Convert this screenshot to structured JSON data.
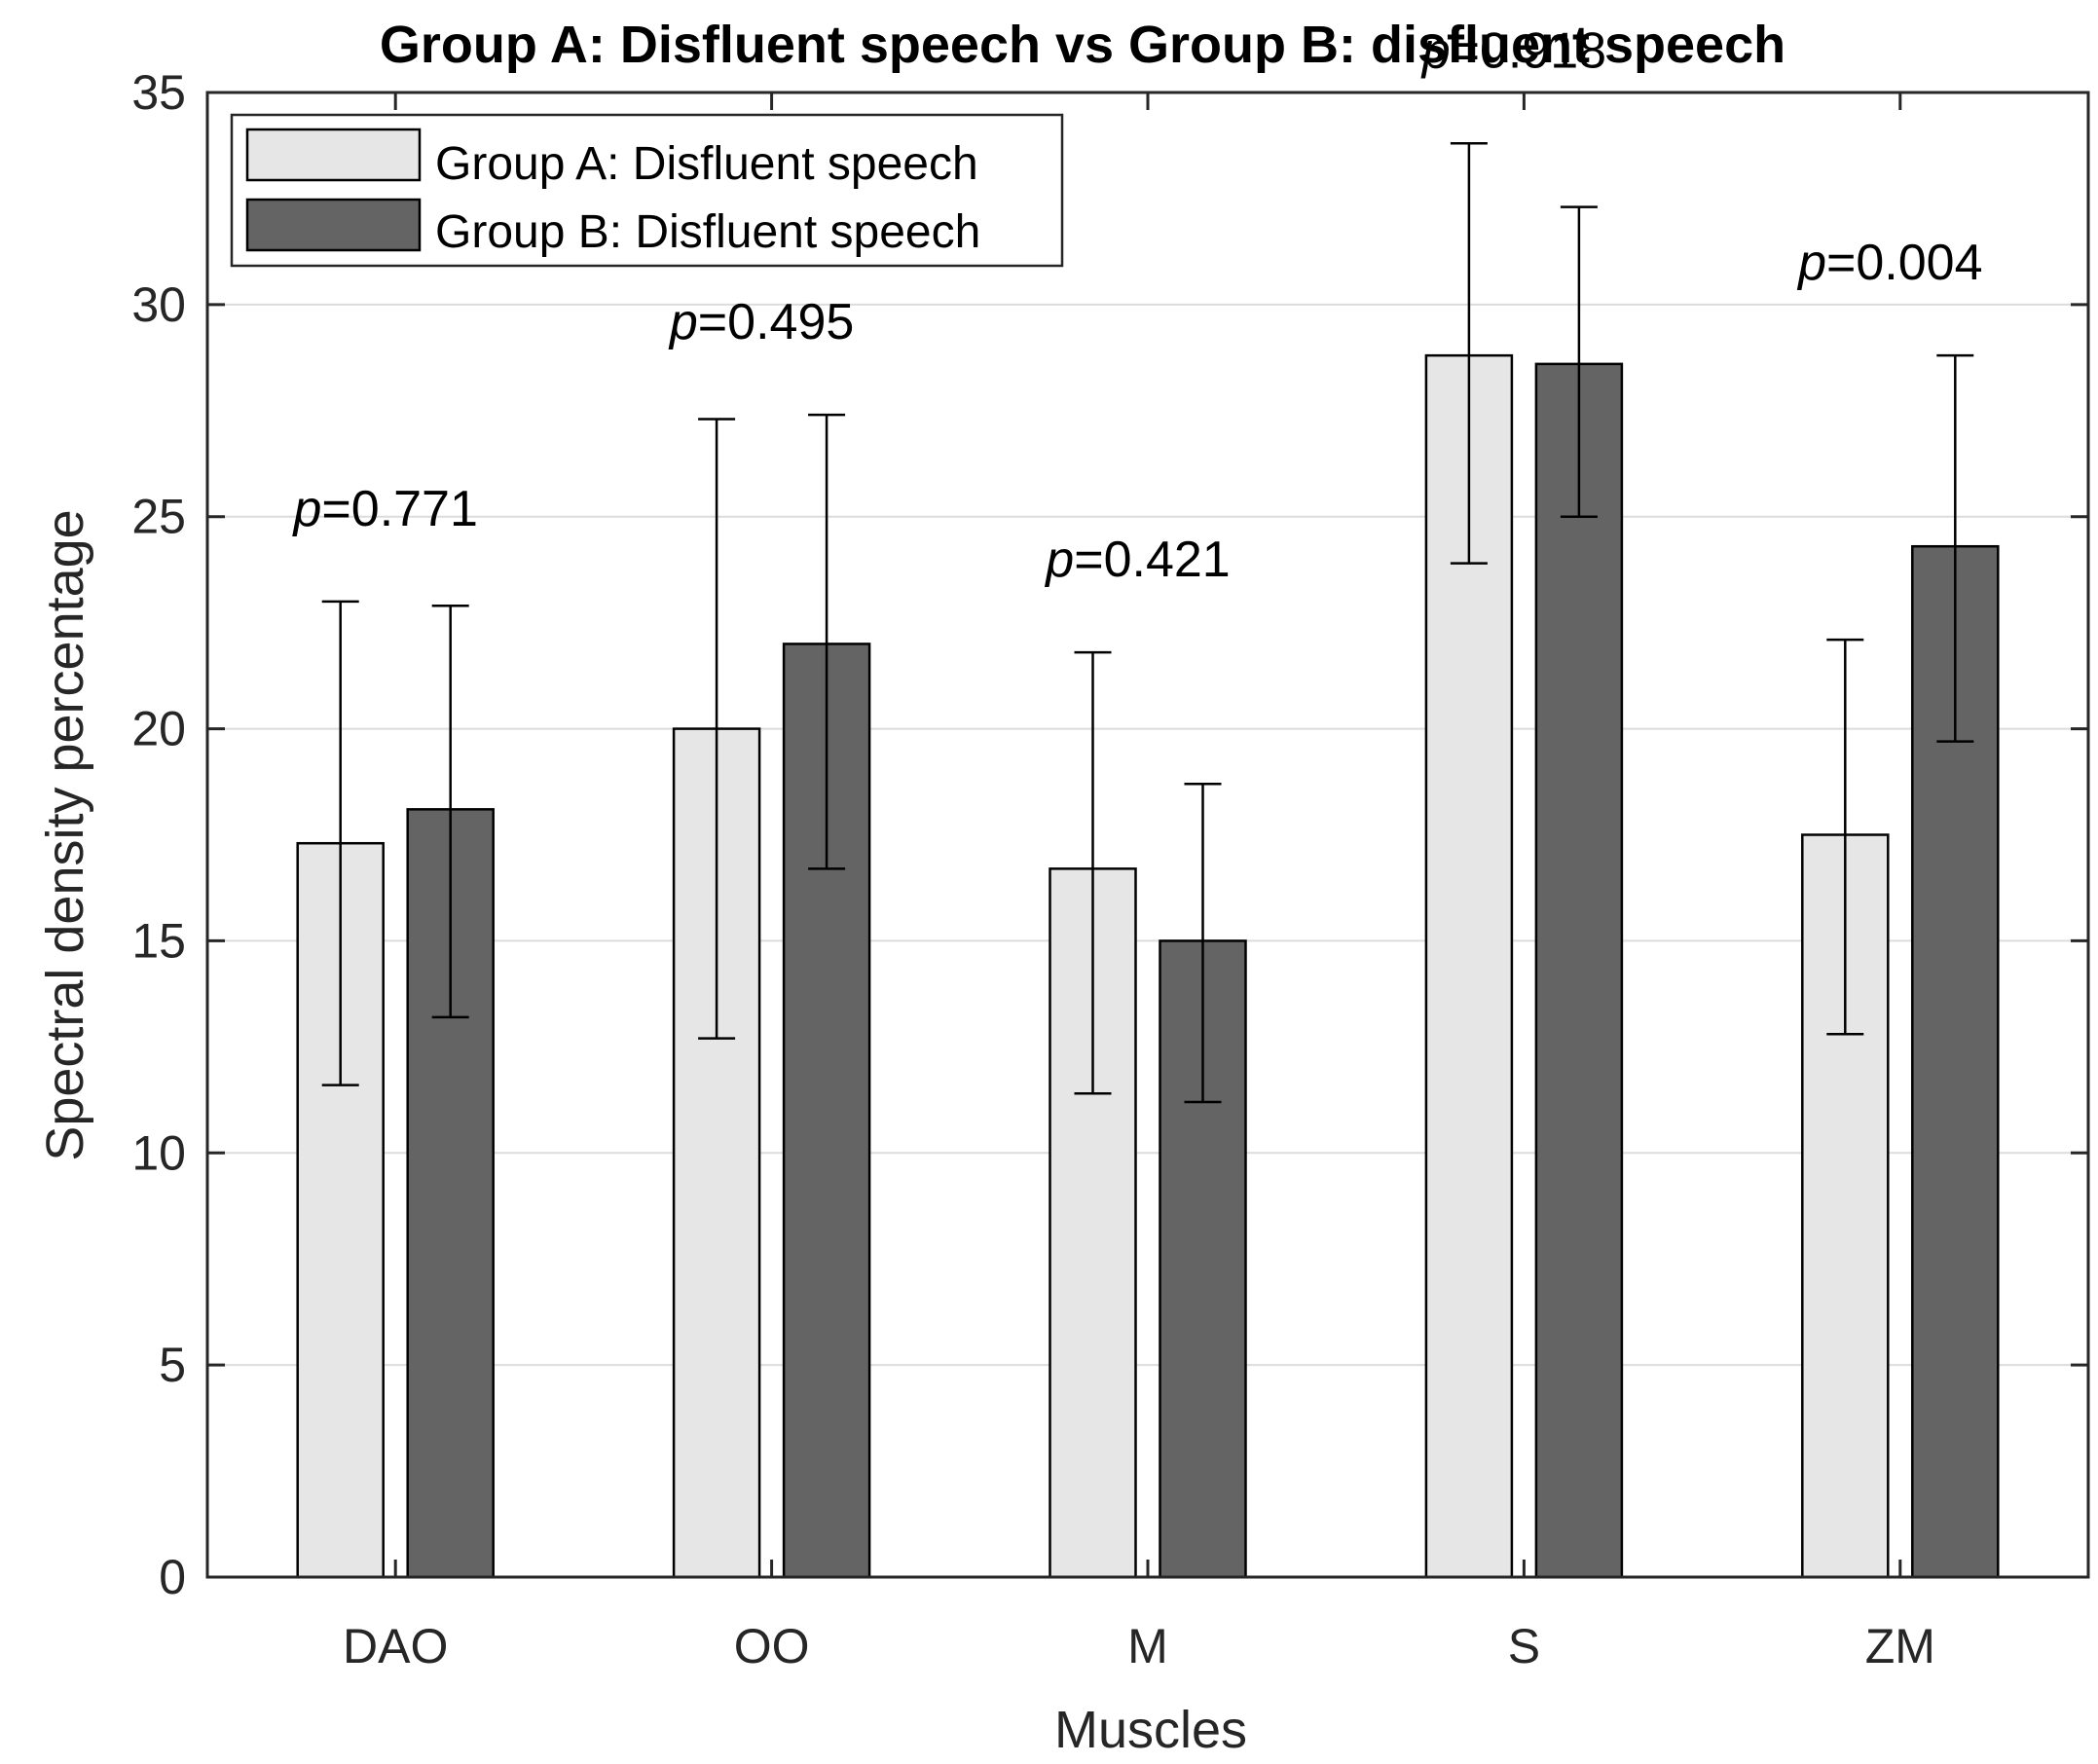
{
  "chart_data": {
    "type": "bar",
    "title": "Group A: Disfluent speech vs Group B: disfluent speech",
    "xlabel": "Muscles",
    "ylabel": "Spectral density percentage",
    "categories": [
      "DAO",
      "OO",
      "M",
      "S",
      "ZM"
    ],
    "ylim": [
      0,
      35
    ],
    "yticks": [
      0,
      5,
      10,
      15,
      20,
      25,
      30,
      35
    ],
    "grid": "horizontal",
    "legend_position": "top-left",
    "series": [
      {
        "name": "Group A: Disfluent speech",
        "color": "#e6e6e6",
        "values": [
          17.3,
          20.0,
          16.7,
          28.8,
          17.5
        ],
        "error_low": [
          11.6,
          12.7,
          11.4,
          23.9,
          12.8
        ],
        "error_high": [
          23.0,
          27.3,
          21.8,
          33.8,
          22.1
        ]
      },
      {
        "name": "Group B: Disfluent speech",
        "color": "#646464",
        "values": [
          18.1,
          22.0,
          15.0,
          28.6,
          24.3
        ],
        "error_low": [
          13.2,
          16.7,
          11.2,
          25.0,
          19.7
        ],
        "error_high": [
          22.9,
          27.4,
          18.7,
          32.3,
          28.8
        ]
      }
    ],
    "annotations": [
      {
        "category": "DAO",
        "label_p": "p",
        "label_rest": "=0.771"
      },
      {
        "category": "OO",
        "label_p": "p",
        "label_rest": "=0.495"
      },
      {
        "category": "M",
        "label_p": "p",
        "label_rest": "=0.421"
      },
      {
        "category": "S",
        "label_p": "p",
        "label_rest": "=0.918"
      },
      {
        "category": "ZM",
        "label_p": "p",
        "label_rest": "=0.004"
      }
    ]
  }
}
